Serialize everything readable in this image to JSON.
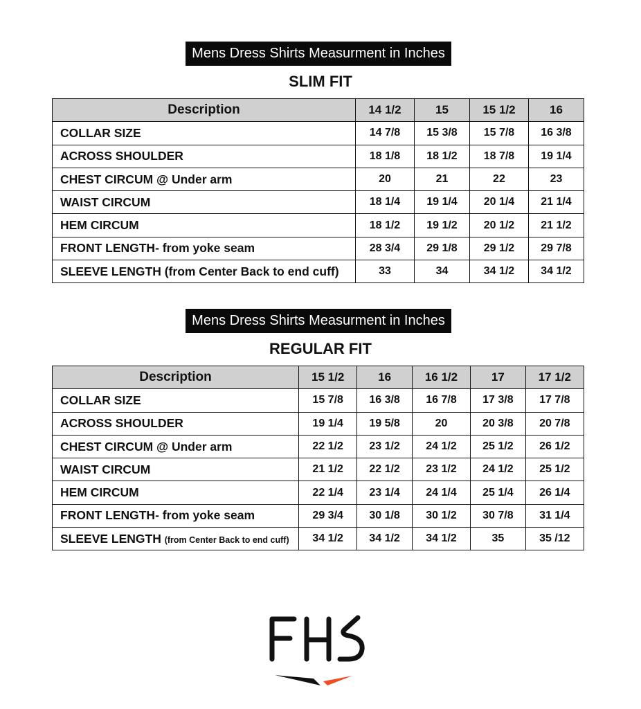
{
  "slim": {
    "banner": "Mens Dress Shirts Measurment in Inches",
    "title": "SLIM FIT",
    "headers": [
      "Description",
      "14 1/2",
      "15",
      "15 1/2",
      "16"
    ],
    "rows": [
      {
        "label": "COLLAR SIZE",
        "values": [
          "14 7/8",
          "15 3/8",
          "15 7/8",
          "16 3/8"
        ]
      },
      {
        "label": "ACROSS SHOULDER",
        "values": [
          "18 1/8",
          "18 1/2",
          "18 7/8",
          "19 1/4"
        ]
      },
      {
        "label": "CHEST CIRCUM @ Under arm",
        "values": [
          "20",
          "21",
          "22",
          "23"
        ]
      },
      {
        "label": "WAIST CIRCUM",
        "values": [
          "18 1/4",
          "19 1/4",
          "20 1/4",
          "21 1/4"
        ]
      },
      {
        "label": "HEM CIRCUM",
        "values": [
          "18 1/2",
          "19 1/2",
          "20 1/2",
          "21 1/2"
        ]
      },
      {
        "label": "FRONT LENGTH- from yoke seam",
        "values": [
          "28 3/4",
          "29 1/8",
          "29 1/2",
          "29 7/8"
        ]
      },
      {
        "label": "SLEEVE LENGTH",
        "note": "(from Center Back to end cuff)",
        "values": [
          "33",
          "34",
          "34 1/2",
          "34 1/2"
        ]
      }
    ]
  },
  "regular": {
    "banner": "Mens Dress Shirts Measurment in Inches",
    "title": "REGULAR FIT",
    "headers": [
      "Description",
      "15 1/2",
      "16",
      "16 1/2",
      "17",
      "17 1/2"
    ],
    "rows": [
      {
        "label": "COLLAR SIZE",
        "values": [
          "15 7/8",
          "16 3/8",
          "16 7/8",
          "17 3/8",
          "17 7/8"
        ]
      },
      {
        "label": "ACROSS SHOULDER",
        "values": [
          "19 1/4",
          "19 5/8",
          "20",
          "20 3/8",
          "20 7/8"
        ]
      },
      {
        "label": "CHEST CIRCUM @ Under arm",
        "values": [
          "22 1/2",
          "23 1/2",
          "24 1/2",
          "25 1/2",
          "26 1/2"
        ]
      },
      {
        "label": "WAIST CIRCUM",
        "values": [
          "21 1/2",
          "22 1/2",
          "23 1/2",
          "24 1/2",
          "25 1/2"
        ]
      },
      {
        "label": "HEM CIRCUM",
        "values": [
          "22 1/4",
          "23 1/4",
          "24 1/4",
          "25 1/4",
          "26 1/4"
        ]
      },
      {
        "label": "FRONT LENGTH- from yoke seam",
        "values": [
          "29 3/4",
          "30 1/8",
          "30 1/2",
          "30 7/8",
          "31 1/4"
        ]
      },
      {
        "label": "SLEEVE LENGTH",
        "note": "(from Center Back to end cuff)",
        "values": [
          "34 1/2",
          "34 1/2",
          "34 1/2",
          "35",
          "35 /12"
        ]
      }
    ]
  },
  "logo": {
    "text": "FHS",
    "accent": "#f04e23"
  }
}
